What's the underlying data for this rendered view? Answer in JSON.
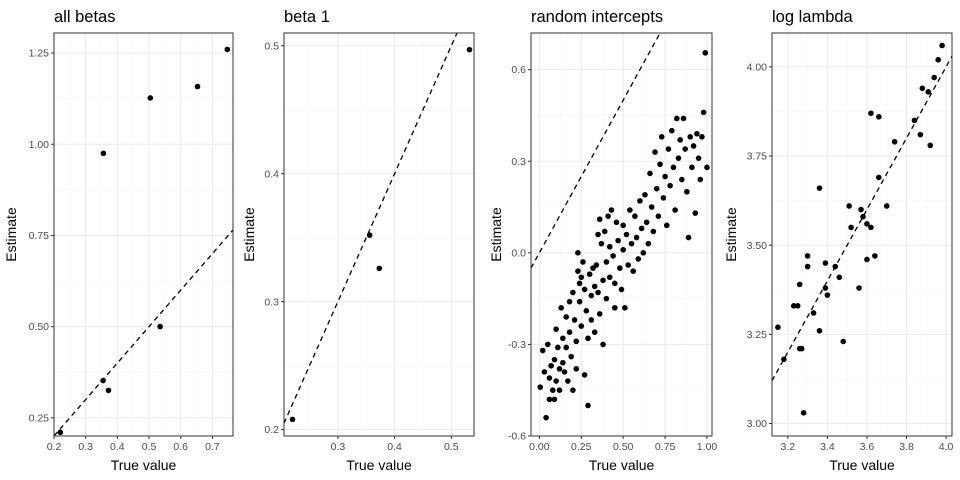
{
  "chart_data": [
    {
      "type": "scatter",
      "title": "all betas",
      "xlabel": "True value",
      "ylabel": "Estimate",
      "xlim": [
        0.2,
        0.765
      ],
      "ylim": [
        0.2,
        1.305
      ],
      "xticks": [
        "0.2",
        "0.3",
        "0.4",
        "0.5",
        "0.6",
        "0.7"
      ],
      "yticks": [
        "0.25",
        "0.50",
        "0.75",
        "1.00",
        "1.25"
      ],
      "reference_line": {
        "intercept": 0,
        "slope": 1,
        "style": "dashed"
      },
      "points": [
        {
          "x": 0.22,
          "y": 0.21
        },
        {
          "x": 0.355,
          "y": 0.352
        },
        {
          "x": 0.372,
          "y": 0.325
        },
        {
          "x": 0.356,
          "y": 0.975
        },
        {
          "x": 0.504,
          "y": 1.127
        },
        {
          "x": 0.535,
          "y": 0.5
        },
        {
          "x": 0.653,
          "y": 1.158
        },
        {
          "x": 0.747,
          "y": 1.26
        }
      ]
    },
    {
      "type": "scatter",
      "title": "beta 1",
      "xlabel": "True value",
      "ylabel": "Estimate",
      "xlim": [
        0.205,
        0.54
      ],
      "ylim": [
        0.195,
        0.51
      ],
      "xticks": [
        "0.3",
        "0.4",
        "0.5"
      ],
      "yticks": [
        "0.2",
        "0.3",
        "0.4",
        "0.5"
      ],
      "reference_line": {
        "intercept": 0,
        "slope": 1,
        "style": "dashed"
      },
      "points": [
        {
          "x": 0.22,
          "y": 0.208
        },
        {
          "x": 0.356,
          "y": 0.352
        },
        {
          "x": 0.373,
          "y": 0.326
        },
        {
          "x": 0.532,
          "y": 0.497
        }
      ]
    },
    {
      "type": "scatter",
      "title": "random intercepts",
      "xlabel": "True value",
      "ylabel": "Estimate",
      "xlim": [
        -0.05,
        1.03
      ],
      "ylim": [
        -0.6,
        0.72
      ],
      "xticks": [
        "0.00",
        "0.25",
        "0.50",
        "0.75",
        "1.00"
      ],
      "yticks": [
        "-0.6",
        "-0.3",
        "0.0",
        "0.3",
        "0.6"
      ],
      "reference_line": {
        "intercept": 0,
        "slope": 1,
        "style": "dashed"
      },
      "points": [
        {
          "x": 0.005,
          "y": -0.44
        },
        {
          "x": 0.02,
          "y": -0.32
        },
        {
          "x": 0.03,
          "y": -0.39
        },
        {
          "x": 0.04,
          "y": -0.54
        },
        {
          "x": 0.05,
          "y": -0.3
        },
        {
          "x": 0.06,
          "y": -0.41
        },
        {
          "x": 0.06,
          "y": -0.48
        },
        {
          "x": 0.07,
          "y": -0.37
        },
        {
          "x": 0.08,
          "y": -0.45
        },
        {
          "x": 0.09,
          "y": -0.35
        },
        {
          "x": 0.09,
          "y": -0.48
        },
        {
          "x": 0.1,
          "y": -0.25
        },
        {
          "x": 0.1,
          "y": -0.42
        },
        {
          "x": 0.11,
          "y": -0.31
        },
        {
          "x": 0.12,
          "y": -0.38
        },
        {
          "x": 0.12,
          "y": -0.45
        },
        {
          "x": 0.13,
          "y": -0.18
        },
        {
          "x": 0.14,
          "y": -0.28
        },
        {
          "x": 0.14,
          "y": -0.36
        },
        {
          "x": 0.15,
          "y": -0.39
        },
        {
          "x": 0.16,
          "y": -0.21
        },
        {
          "x": 0.16,
          "y": -0.31
        },
        {
          "x": 0.17,
          "y": -0.42
        },
        {
          "x": 0.18,
          "y": -0.16
        },
        {
          "x": 0.18,
          "y": -0.26
        },
        {
          "x": 0.19,
          "y": -0.34
        },
        {
          "x": 0.2,
          "y": -0.13
        },
        {
          "x": 0.2,
          "y": -0.45
        },
        {
          "x": 0.21,
          "y": -0.22
        },
        {
          "x": 0.22,
          "y": -0.29
        },
        {
          "x": 0.22,
          "y": -0.38
        },
        {
          "x": 0.23,
          "y": -0.06
        },
        {
          "x": 0.23,
          "y": 0.0
        },
        {
          "x": 0.24,
          "y": -0.1
        },
        {
          "x": 0.24,
          "y": -0.16
        },
        {
          "x": 0.25,
          "y": -0.08
        },
        {
          "x": 0.25,
          "y": -0.24
        },
        {
          "x": 0.26,
          "y": -0.03
        },
        {
          "x": 0.27,
          "y": -0.12
        },
        {
          "x": 0.27,
          "y": -0.4
        },
        {
          "x": 0.28,
          "y": -0.19
        },
        {
          "x": 0.29,
          "y": -0.28
        },
        {
          "x": 0.29,
          "y": -0.5
        },
        {
          "x": 0.3,
          "y": -0.07
        },
        {
          "x": 0.31,
          "y": -0.14
        },
        {
          "x": 0.31,
          "y": -0.22
        },
        {
          "x": 0.32,
          "y": -0.05
        },
        {
          "x": 0.33,
          "y": -0.11
        },
        {
          "x": 0.33,
          "y": -0.26
        },
        {
          "x": 0.34,
          "y": -0.04
        },
        {
          "x": 0.35,
          "y": 0.06
        },
        {
          "x": 0.35,
          "y": -0.13
        },
        {
          "x": 0.36,
          "y": 0.11
        },
        {
          "x": 0.36,
          "y": -0.2
        },
        {
          "x": 0.37,
          "y": 0.03
        },
        {
          "x": 0.38,
          "y": -0.09
        },
        {
          "x": 0.38,
          "y": -0.3
        },
        {
          "x": 0.39,
          "y": 0.07
        },
        {
          "x": 0.4,
          "y": -0.03
        },
        {
          "x": 0.4,
          "y": -0.15
        },
        {
          "x": 0.41,
          "y": 0.12
        },
        {
          "x": 0.42,
          "y": 0.02
        },
        {
          "x": 0.42,
          "y": -0.08
        },
        {
          "x": 0.43,
          "y": 0.14
        },
        {
          "x": 0.44,
          "y": -0.01
        },
        {
          "x": 0.45,
          "y": -0.1
        },
        {
          "x": 0.45,
          "y": -0.18
        },
        {
          "x": 0.46,
          "y": 0.1
        },
        {
          "x": 0.47,
          "y": 0.04
        },
        {
          "x": 0.48,
          "y": -0.05
        },
        {
          "x": 0.49,
          "y": -0.12
        },
        {
          "x": 0.5,
          "y": 0.09
        },
        {
          "x": 0.5,
          "y": 0.01
        },
        {
          "x": 0.51,
          "y": -0.18
        },
        {
          "x": 0.52,
          "y": 0.06
        },
        {
          "x": 0.53,
          "y": -0.04
        },
        {
          "x": 0.54,
          "y": 0.14
        },
        {
          "x": 0.55,
          "y": 0.03
        },
        {
          "x": 0.56,
          "y": -0.06
        },
        {
          "x": 0.57,
          "y": 0.12
        },
        {
          "x": 0.58,
          "y": 0.05
        },
        {
          "x": 0.59,
          "y": -0.02
        },
        {
          "x": 0.6,
          "y": 0.17
        },
        {
          "x": 0.61,
          "y": 0.08
        },
        {
          "x": 0.62,
          "y": 0.0
        },
        {
          "x": 0.63,
          "y": 0.19
        },
        {
          "x": 0.64,
          "y": 0.1
        },
        {
          "x": 0.65,
          "y": 0.03
        },
        {
          "x": 0.66,
          "y": 0.26
        },
        {
          "x": 0.67,
          "y": 0.15
        },
        {
          "x": 0.68,
          "y": 0.07
        },
        {
          "x": 0.69,
          "y": 0.33
        },
        {
          "x": 0.7,
          "y": 0.21
        },
        {
          "x": 0.71,
          "y": 0.12
        },
        {
          "x": 0.72,
          "y": 0.29
        },
        {
          "x": 0.73,
          "y": 0.38
        },
        {
          "x": 0.74,
          "y": 0.18
        },
        {
          "x": 0.75,
          "y": 0.25
        },
        {
          "x": 0.76,
          "y": 0.09
        },
        {
          "x": 0.77,
          "y": 0.34
        },
        {
          "x": 0.78,
          "y": 0.22
        },
        {
          "x": 0.79,
          "y": 0.4
        },
        {
          "x": 0.8,
          "y": 0.28
        },
        {
          "x": 0.81,
          "y": 0.14
        },
        {
          "x": 0.82,
          "y": 0.44
        },
        {
          "x": 0.83,
          "y": 0.31
        },
        {
          "x": 0.84,
          "y": 0.37
        },
        {
          "x": 0.85,
          "y": 0.24
        },
        {
          "x": 0.86,
          "y": 0.44
        },
        {
          "x": 0.87,
          "y": 0.34
        },
        {
          "x": 0.88,
          "y": 0.2
        },
        {
          "x": 0.89,
          "y": 0.05
        },
        {
          "x": 0.9,
          "y": 0.38
        },
        {
          "x": 0.91,
          "y": 0.28
        },
        {
          "x": 0.92,
          "y": 0.35
        },
        {
          "x": 0.93,
          "y": 0.13
        },
        {
          "x": 0.94,
          "y": 0.39
        },
        {
          "x": 0.95,
          "y": 0.31
        },
        {
          "x": 0.96,
          "y": 0.24
        },
        {
          "x": 0.97,
          "y": 0.38
        },
        {
          "x": 0.98,
          "y": 0.46
        },
        {
          "x": 0.99,
          "y": 0.655
        },
        {
          "x": 1.0,
          "y": 0.28
        }
      ]
    },
    {
      "type": "scatter",
      "title": "log lambda",
      "xlabel": "True value",
      "ylabel": "Estimate",
      "xlim": [
        3.12,
        4.03
      ],
      "ylim": [
        2.965,
        4.095
      ],
      "xticks": [
        "3.2",
        "3.4",
        "3.6",
        "3.8",
        "4.0"
      ],
      "yticks": [
        "3.00",
        "3.25",
        "3.50",
        "3.75",
        "4.00"
      ],
      "reference_line": {
        "intercept": 0,
        "slope": 1,
        "style": "dashed"
      },
      "points": [
        {
          "x": 3.15,
          "y": 3.27
        },
        {
          "x": 3.18,
          "y": 3.18
        },
        {
          "x": 3.23,
          "y": 3.33
        },
        {
          "x": 3.25,
          "y": 3.33
        },
        {
          "x": 3.26,
          "y": 3.21
        },
        {
          "x": 3.26,
          "y": 3.39
        },
        {
          "x": 3.27,
          "y": 3.21
        },
        {
          "x": 3.28,
          "y": 3.03
        },
        {
          "x": 3.3,
          "y": 3.47
        },
        {
          "x": 3.3,
          "y": 3.44
        },
        {
          "x": 3.33,
          "y": 3.31
        },
        {
          "x": 3.36,
          "y": 3.66
        },
        {
          "x": 3.36,
          "y": 3.26
        },
        {
          "x": 3.39,
          "y": 3.45
        },
        {
          "x": 3.39,
          "y": 3.38
        },
        {
          "x": 3.4,
          "y": 3.36
        },
        {
          "x": 3.44,
          "y": 3.44
        },
        {
          "x": 3.46,
          "y": 3.41
        },
        {
          "x": 3.48,
          "y": 3.23
        },
        {
          "x": 3.51,
          "y": 3.61
        },
        {
          "x": 3.52,
          "y": 3.55
        },
        {
          "x": 3.56,
          "y": 3.38
        },
        {
          "x": 3.57,
          "y": 3.6
        },
        {
          "x": 3.58,
          "y": 3.58
        },
        {
          "x": 3.6,
          "y": 3.56
        },
        {
          "x": 3.6,
          "y": 3.46
        },
        {
          "x": 3.62,
          "y": 3.55
        },
        {
          "x": 3.62,
          "y": 3.87
        },
        {
          "x": 3.64,
          "y": 3.47
        },
        {
          "x": 3.66,
          "y": 3.86
        },
        {
          "x": 3.66,
          "y": 3.69
        },
        {
          "x": 3.7,
          "y": 3.61
        },
        {
          "x": 3.74,
          "y": 3.79
        },
        {
          "x": 3.84,
          "y": 3.85
        },
        {
          "x": 3.87,
          "y": 3.81
        },
        {
          "x": 3.88,
          "y": 3.94
        },
        {
          "x": 3.91,
          "y": 3.93
        },
        {
          "x": 3.92,
          "y": 3.78
        },
        {
          "x": 3.94,
          "y": 3.97
        },
        {
          "x": 3.96,
          "y": 4.02
        },
        {
          "x": 3.98,
          "y": 4.06
        }
      ]
    }
  ]
}
